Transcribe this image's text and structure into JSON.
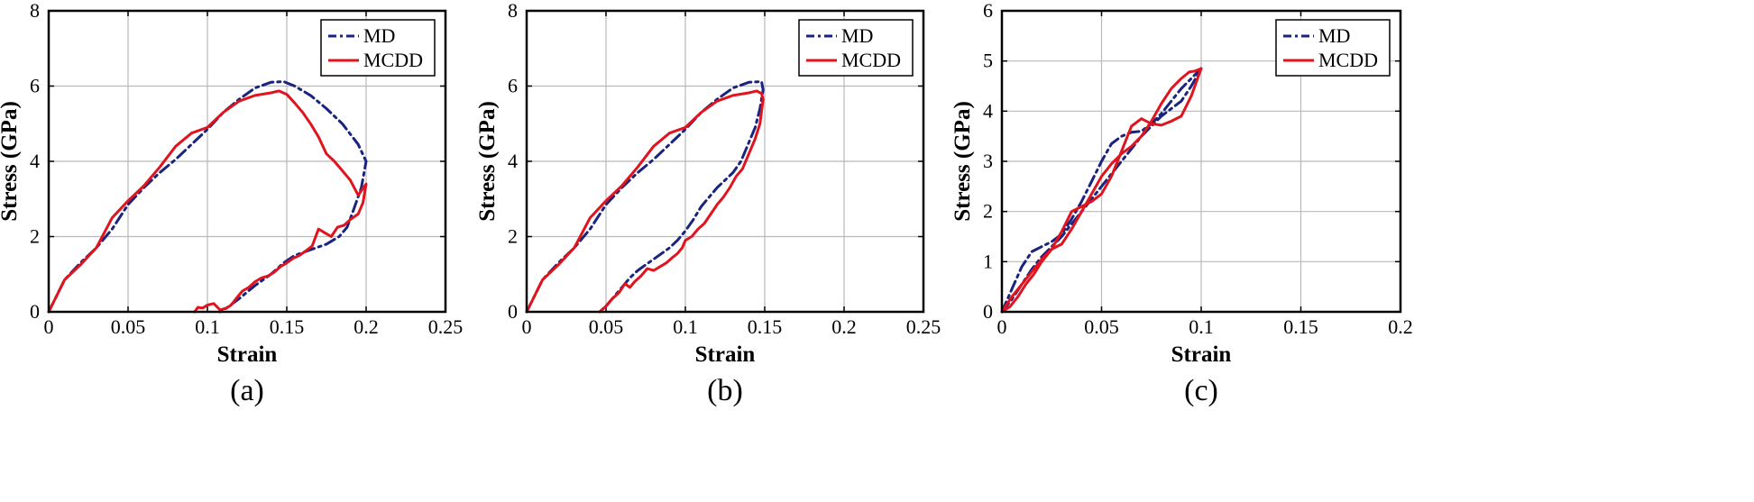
{
  "chart_data": [
    {
      "type": "line",
      "caption": "(a)",
      "xlabel": "Strain",
      "ylabel": "Stress (GPa)",
      "xlim": [
        0,
        0.25
      ],
      "ylim": [
        0,
        8
      ],
      "xticks": [
        0,
        0.05,
        0.1,
        0.15,
        0.2,
        0.25
      ],
      "xtick_labels": [
        "0",
        "0.05",
        "0.1",
        "0.15",
        "0.2",
        "0.25"
      ],
      "yticks": [
        0,
        2,
        4,
        6,
        8
      ],
      "ytick_labels": [
        "0",
        "2",
        "4",
        "6",
        "8"
      ],
      "grid": true,
      "legend_position": "top-right",
      "series": [
        {
          "name": "MD",
          "color": "#1a237e",
          "style": "dash-dot",
          "x": [
            0,
            0.01,
            0.02,
            0.03,
            0.04,
            0.05,
            0.06,
            0.07,
            0.08,
            0.09,
            0.1,
            0.11,
            0.12,
            0.13,
            0.14,
            0.148,
            0.155,
            0.165,
            0.175,
            0.185,
            0.195,
            0.2,
            0.197,
            0.192,
            0.188,
            0.183,
            0.175,
            0.165,
            0.155,
            0.148,
            0.14,
            0.13,
            0.12,
            0.112,
            0.108
          ],
          "y": [
            0,
            0.85,
            1.3,
            1.7,
            2.2,
            2.85,
            3.3,
            3.7,
            4.05,
            4.45,
            4.85,
            5.3,
            5.65,
            5.95,
            6.1,
            6.12,
            6.0,
            5.75,
            5.4,
            5.0,
            4.45,
            4.0,
            3.3,
            2.7,
            2.25,
            2.0,
            1.8,
            1.65,
            1.5,
            1.3,
            1.0,
            0.7,
            0.35,
            0.1,
            0
          ]
        },
        {
          "name": "MCDD",
          "color": "#e0141e",
          "style": "solid",
          "x": [
            0,
            0.01,
            0.02,
            0.03,
            0.04,
            0.05,
            0.06,
            0.07,
            0.08,
            0.09,
            0.1,
            0.11,
            0.12,
            0.13,
            0.14,
            0.145,
            0.15,
            0.155,
            0.16,
            0.165,
            0.17,
            0.175,
            0.18,
            0.185,
            0.19,
            0.195,
            0.2,
            0.198,
            0.195,
            0.19,
            0.186,
            0.182,
            0.178,
            0.174,
            0.17,
            0.166,
            0.162,
            0.158,
            0.154,
            0.15,
            0.146,
            0.142,
            0.138,
            0.134,
            0.13,
            0.126,
            0.122,
            0.118,
            0.115,
            0.112,
            0.108,
            0.104,
            0.1,
            0.097,
            0.094,
            0.092
          ],
          "y": [
            0,
            0.85,
            1.25,
            1.7,
            2.5,
            2.95,
            3.35,
            3.85,
            4.4,
            4.75,
            4.9,
            5.3,
            5.6,
            5.75,
            5.82,
            5.87,
            5.78,
            5.55,
            5.3,
            5.0,
            4.65,
            4.2,
            4.0,
            3.75,
            3.5,
            3.1,
            3.4,
            2.9,
            2.6,
            2.45,
            2.3,
            2.25,
            2.0,
            2.1,
            2.2,
            1.75,
            1.62,
            1.5,
            1.42,
            1.3,
            1.2,
            1.05,
            0.95,
            0.9,
            0.8,
            0.65,
            0.55,
            0.35,
            0.18,
            0.1,
            0.05,
            0.22,
            0.18,
            0.1,
            0.12,
            0
          ]
        }
      ]
    },
    {
      "type": "line",
      "caption": "(b)",
      "xlabel": "Strain",
      "ylabel": "Stress (GPa)",
      "xlim": [
        0,
        0.25
      ],
      "ylim": [
        0,
        8
      ],
      "xticks": [
        0,
        0.05,
        0.1,
        0.15,
        0.2,
        0.25
      ],
      "xtick_labels": [
        "0",
        "0.05",
        "0.1",
        "0.15",
        "0.2",
        "0.25"
      ],
      "yticks": [
        0,
        2,
        4,
        6,
        8
      ],
      "ytick_labels": [
        "0",
        "2",
        "4",
        "6",
        "8"
      ],
      "grid": true,
      "legend_position": "top-right",
      "series": [
        {
          "name": "MD",
          "color": "#1a237e",
          "style": "dash-dot",
          "x": [
            0,
            0.01,
            0.02,
            0.03,
            0.04,
            0.05,
            0.06,
            0.07,
            0.08,
            0.09,
            0.1,
            0.11,
            0.12,
            0.13,
            0.14,
            0.148,
            0.149,
            0.147,
            0.144,
            0.14,
            0.135,
            0.13,
            0.125,
            0.12,
            0.115,
            0.11,
            0.105,
            0.1,
            0.095,
            0.09,
            0.085,
            0.08,
            0.075,
            0.07,
            0.065,
            0.06,
            0.055,
            0.05,
            0.046
          ],
          "y": [
            0,
            0.85,
            1.3,
            1.7,
            2.2,
            2.85,
            3.3,
            3.7,
            4.05,
            4.45,
            4.85,
            5.3,
            5.65,
            5.95,
            6.1,
            6.12,
            5.9,
            5.4,
            4.9,
            4.5,
            4.0,
            3.7,
            3.5,
            3.3,
            3.05,
            2.8,
            2.45,
            2.15,
            1.9,
            1.7,
            1.55,
            1.4,
            1.25,
            1.1,
            0.9,
            0.65,
            0.4,
            0.15,
            0
          ]
        },
        {
          "name": "MCDD",
          "color": "#e0141e",
          "style": "solid",
          "x": [
            0,
            0.01,
            0.02,
            0.03,
            0.04,
            0.05,
            0.06,
            0.07,
            0.08,
            0.09,
            0.1,
            0.11,
            0.12,
            0.13,
            0.14,
            0.145,
            0.148,
            0.149,
            0.147,
            0.144,
            0.14,
            0.136,
            0.132,
            0.128,
            0.124,
            0.12,
            0.116,
            0.112,
            0.108,
            0.104,
            0.1,
            0.098,
            0.095,
            0.092,
            0.088,
            0.084,
            0.08,
            0.076,
            0.072,
            0.068,
            0.065,
            0.062,
            0.058,
            0.054,
            0.05,
            0.046
          ],
          "y": [
            0,
            0.85,
            1.25,
            1.7,
            2.5,
            2.95,
            3.35,
            3.85,
            4.4,
            4.75,
            4.9,
            5.3,
            5.6,
            5.75,
            5.82,
            5.87,
            5.8,
            5.65,
            5.0,
            4.6,
            4.2,
            3.8,
            3.6,
            3.3,
            3.05,
            2.85,
            2.6,
            2.35,
            2.2,
            2.0,
            1.9,
            1.7,
            1.55,
            1.45,
            1.3,
            1.2,
            1.1,
            1.15,
            0.95,
            0.8,
            0.65,
            0.75,
            0.5,
            0.35,
            0.15,
            0
          ]
        }
      ]
    },
    {
      "type": "line",
      "caption": "(c)",
      "xlabel": "Strain",
      "ylabel": "Stress (GPa)",
      "xlim": [
        0,
        0.2
      ],
      "ylim": [
        0,
        6
      ],
      "xticks": [
        0,
        0.05,
        0.1,
        0.15,
        0.2
      ],
      "xtick_labels": [
        "0",
        "0.05",
        "0.1",
        "0.15",
        "0.2"
      ],
      "yticks": [
        0,
        1,
        2,
        3,
        4,
        5,
        6
      ],
      "ytick_labels": [
        "0",
        "1",
        "2",
        "3",
        "4",
        "5",
        "6"
      ],
      "grid": true,
      "legend_position": "top-right",
      "series": [
        {
          "name": "MD",
          "color": "#1a237e",
          "style": "dash-dot",
          "x": [
            0,
            0.005,
            0.01,
            0.015,
            0.02,
            0.025,
            0.03,
            0.035,
            0.04,
            0.045,
            0.05,
            0.055,
            0.06,
            0.065,
            0.07,
            0.075,
            0.08,
            0.085,
            0.09,
            0.095,
            0.1,
            0.095,
            0.09,
            0.085,
            0.08,
            0.075,
            0.07,
            0.065,
            0.06,
            0.055,
            0.05,
            0.045,
            0.04,
            0.035,
            0.03,
            0.025,
            0.02,
            0.015,
            0.01,
            0.005,
            0
          ],
          "y": [
            0,
            0.45,
            0.9,
            1.2,
            1.3,
            1.4,
            1.55,
            1.85,
            2.2,
            2.6,
            3.0,
            3.35,
            3.5,
            3.58,
            3.6,
            3.75,
            3.95,
            4.2,
            4.45,
            4.65,
            4.85,
            4.5,
            4.2,
            4.05,
            3.9,
            3.7,
            3.5,
            3.25,
            3.0,
            2.75,
            2.5,
            2.25,
            2.0,
            1.75,
            1.5,
            1.3,
            1.1,
            0.85,
            0.55,
            0.25,
            0
          ]
        },
        {
          "name": "MCDD",
          "color": "#e0141e",
          "style": "solid",
          "x": [
            0,
            0.004,
            0.008,
            0.012,
            0.016,
            0.02,
            0.025,
            0.03,
            0.035,
            0.04,
            0.045,
            0.05,
            0.055,
            0.06,
            0.065,
            0.07,
            0.075,
            0.08,
            0.085,
            0.09,
            0.095,
            0.1,
            0.097,
            0.094,
            0.09,
            0.085,
            0.08,
            0.075,
            0.07,
            0.065,
            0.06,
            0.055,
            0.05,
            0.045,
            0.04,
            0.035,
            0.03,
            0.025,
            0.02,
            0.015,
            0.01,
            0.005,
            0
          ],
          "y": [
            0,
            0.1,
            0.3,
            0.55,
            0.75,
            1.0,
            1.25,
            1.6,
            2.0,
            2.1,
            2.2,
            2.35,
            2.7,
            3.2,
            3.7,
            3.85,
            3.75,
            3.72,
            3.8,
            3.9,
            4.3,
            4.85,
            4.8,
            4.78,
            4.65,
            4.45,
            4.15,
            3.8,
            3.5,
            3.3,
            3.15,
            2.95,
            2.7,
            2.35,
            2.0,
            1.65,
            1.35,
            1.25,
            1.05,
            0.8,
            0.55,
            0.3,
            0
          ]
        }
      ]
    }
  ]
}
